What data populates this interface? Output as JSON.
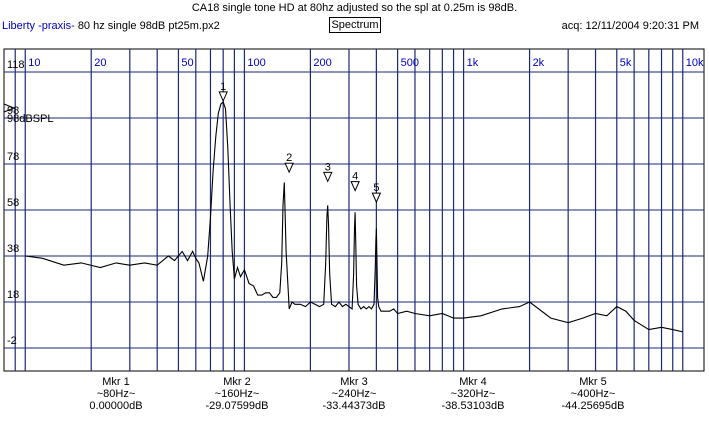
{
  "header": {
    "title": "CA18 single tone HD at 80hz adjusted so the spl at 0.25m is 98dB.",
    "program": "Liberty -praxis-",
    "file": "80 hz single 98dB pt25m.px2",
    "mode_button": "Spectrum",
    "acq": "acq: 12/11/2004 9:20:31 PM"
  },
  "colors": {
    "grid": "#1a2a7a",
    "trace": "#000000",
    "freq_labels": "#0000c0",
    "level_labels": "#000000"
  },
  "chart_data": {
    "type": "line",
    "x_scale": "log",
    "xlim": [
      8,
      12500
    ],
    "ylim": [
      -12,
      128
    ],
    "x_tick_labels": [
      {
        "label": "10",
        "value": 10
      },
      {
        "label": "20",
        "value": 20
      },
      {
        "label": "50",
        "value": 50
      },
      {
        "label": "100",
        "value": 100
      },
      {
        "label": "200",
        "value": 200
      },
      {
        "label": "500",
        "value": 500
      },
      {
        "label": "1k",
        "value": 1000
      },
      {
        "label": "2k",
        "value": 2000
      },
      {
        "label": "5k",
        "value": 5000
      },
      {
        "label": "10k",
        "value": 10000
      }
    ],
    "y_tick_labels": [
      "118",
      "98",
      "78",
      "58",
      "38",
      "18",
      "-2"
    ],
    "y_ticks": [
      118,
      98,
      78,
      58,
      38,
      18,
      -2
    ],
    "reference_label": "98dBSPL",
    "reference_level": 98,
    "grid": true,
    "series": [
      {
        "x": [
          10,
          12,
          15,
          18,
          22,
          26,
          30,
          35,
          40,
          45,
          48,
          52,
          55,
          58,
          60,
          62,
          65,
          68,
          70,
          72,
          74,
          76,
          78,
          80,
          82,
          84,
          86,
          88,
          90,
          93,
          96,
          100,
          105,
          110,
          115,
          120,
          125,
          130,
          135,
          140,
          145,
          148,
          150,
          152,
          155,
          160,
          165,
          170,
          180,
          190,
          200,
          210,
          220,
          230,
          235,
          238,
          240,
          242,
          245,
          250,
          260,
          270,
          280,
          290,
          300,
          310,
          315,
          318,
          320,
          322,
          325,
          330,
          340,
          350,
          360,
          370,
          380,
          390,
          395,
          398,
          400,
          402,
          405,
          410,
          420,
          440,
          460,
          480,
          500,
          550,
          600,
          700,
          800,
          900,
          1000,
          1200,
          1500,
          1800,
          2000,
          2500,
          3000,
          3500,
          4000,
          4500,
          5000,
          5500,
          6000,
          7000,
          8000,
          9000,
          10000
        ],
        "y": [
          38,
          37,
          34,
          35,
          33,
          35,
          34,
          35,
          34,
          38,
          36,
          40,
          36,
          40,
          37,
          35,
          27,
          38,
          55,
          75,
          90,
          100,
          104,
          105,
          102,
          85,
          60,
          40,
          28,
          33,
          29,
          32,
          26,
          25,
          21,
          21,
          22,
          22,
          20,
          20,
          22,
          35,
          60,
          70,
          40,
          15,
          18,
          17,
          17,
          16,
          18,
          17,
          16,
          17,
          35,
          55,
          60,
          52,
          30,
          17,
          16,
          18,
          16,
          17,
          16,
          15,
          30,
          50,
          57,
          45,
          25,
          17,
          15,
          16,
          15,
          16,
          15,
          17,
          32,
          45,
          50,
          40,
          20,
          16,
          14,
          14,
          14,
          15,
          13,
          14,
          13,
          12,
          13,
          11,
          11,
          12,
          15,
          16,
          18,
          11,
          9,
          11,
          13,
          12,
          16,
          14,
          10,
          6,
          7,
          6,
          5
        ]
      }
    ],
    "harmonic_markers": [
      {
        "label": "1",
        "x": 80,
        "y": 105
      },
      {
        "label": "2",
        "x": 160,
        "y": 74
      },
      {
        "label": "3",
        "x": 240,
        "y": 70
      },
      {
        "label": "4",
        "x": 320,
        "y": 66
      },
      {
        "label": "5",
        "x": 400,
        "y": 61
      }
    ]
  },
  "markers": [
    {
      "name": "Mkr 1",
      "freq": "~80Hz~",
      "level": "0.00000dB"
    },
    {
      "name": "Mkr 2",
      "freq": "~160Hz~",
      "level": "-29.07599dB"
    },
    {
      "name": "Mkr 3",
      "freq": "~240Hz~",
      "level": "-33.44373dB"
    },
    {
      "name": "Mkr 4",
      "freq": "~320Hz~",
      "level": "-38.53103dB"
    },
    {
      "name": "Mkr 5",
      "freq": "~400Hz~",
      "level": "-44.25695dB"
    }
  ]
}
